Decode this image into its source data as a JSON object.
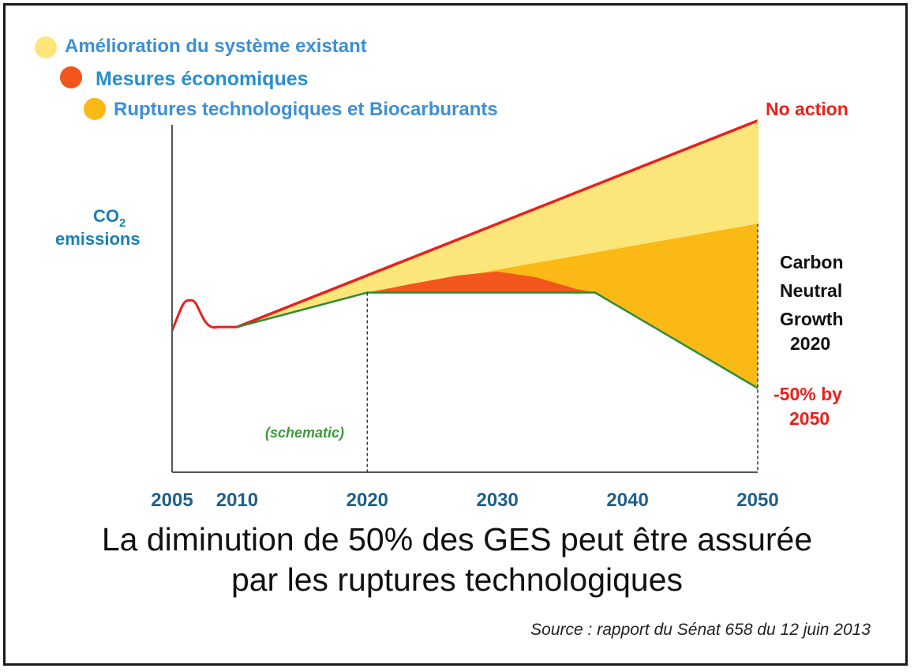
{
  "chart_data": {
    "type": "area",
    "xlabel": "",
    "ylabel": "CO2 emissions",
    "ylabel_line1": "CO",
    "ylabel_sub": "2",
    "ylabel_line2": "emissions",
    "x_ticks": [
      "2005",
      "2010",
      "2020",
      "2030",
      "2040",
      "2050"
    ],
    "xlim": [
      2005,
      2050
    ],
    "ylim": [
      0,
      100
    ],
    "grid": false,
    "legend_placement": "top-left",
    "series": [
      {
        "name": "Amélioration du système existant",
        "color": "#fce67a"
      },
      {
        "name": "Mesures économiques",
        "color": "#f2561d"
      },
      {
        "name": "Ruptures technologiques et Biocarburants",
        "color": "#fbb915"
      }
    ],
    "lines": {
      "history": {
        "x": [
          2005,
          2006.5,
          2008.5,
          2010
        ],
        "y": [
          37,
          45,
          38,
          38
        ]
      },
      "no_action": {
        "x": [
          2010,
          2050
        ],
        "y": [
          38,
          92
        ]
      },
      "improved": {
        "x": [
          2010,
          2020,
          2050
        ],
        "y": [
          38,
          47,
          65
        ]
      },
      "economic_peak": {
        "x": [
          2020,
          2023,
          2027,
          2030,
          2033,
          2036,
          2037.5
        ],
        "y": [
          47,
          49,
          51.5,
          52.5,
          51,
          48,
          47
        ]
      },
      "target": {
        "x": [
          2010,
          2020,
          2037.5,
          2050
        ],
        "y": [
          38,
          47,
          47,
          22
        ]
      }
    },
    "annotations": {
      "no_action": "No action",
      "cng_1": "Carbon",
      "cng_2": "Neutral",
      "cng_3": "Growth",
      "cng_4": "2020",
      "reduction_1": "-50% by",
      "reduction_2": "2050",
      "schematic": "(schematic)"
    },
    "title_line1": "La diminution de 50% des GES peut être assurée",
    "title_line2": "par les ruptures technologiques"
  },
  "source": "Source : rapport du Sénat 658 du 12 juin 2013",
  "colors": {
    "no_action_line": "#e8211c",
    "target_line": "#2e8b3a",
    "legend_text": "#3d8fd6"
  }
}
